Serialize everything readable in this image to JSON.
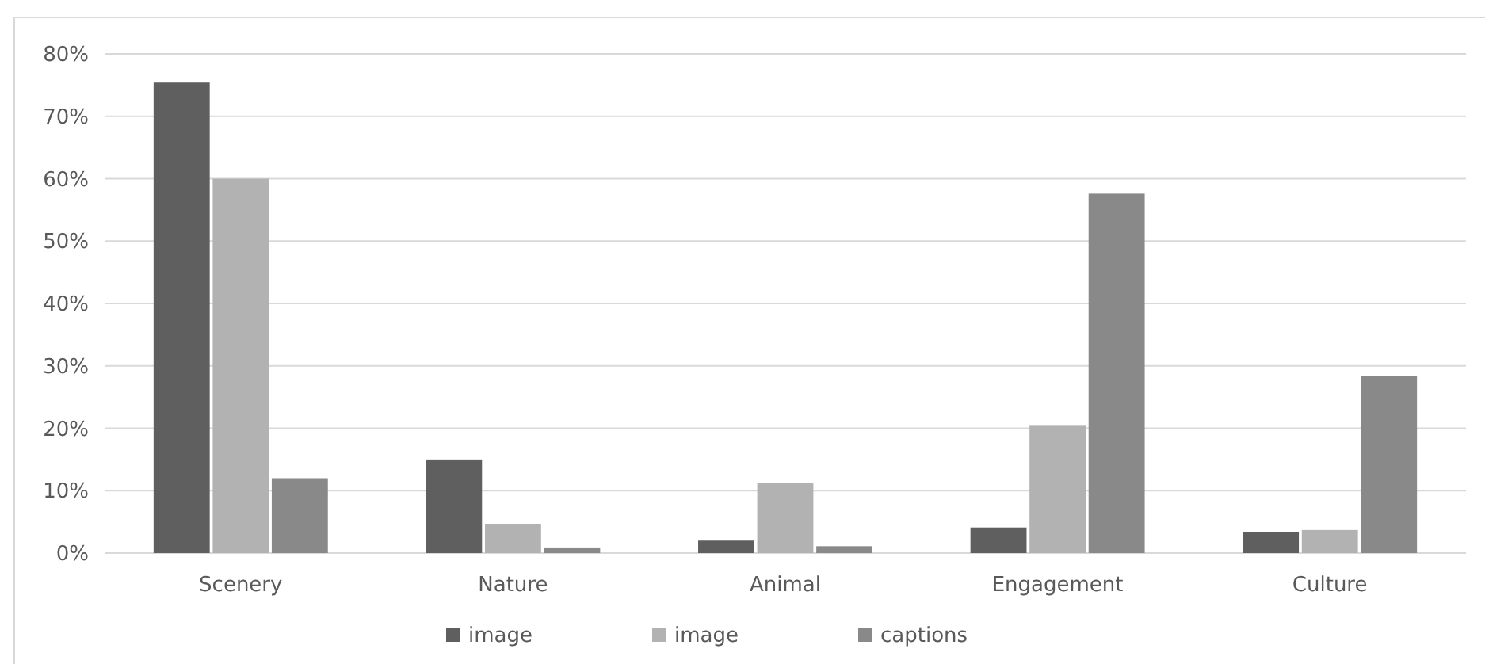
{
  "chart_data": {
    "type": "bar",
    "categories": [
      "Scenery",
      "Nature",
      "Animal",
      "Engagement",
      "Culture"
    ],
    "series": [
      {
        "name": "image",
        "color": "#5f5f5f",
        "values": [
          75.4,
          15,
          2,
          4.1,
          3.4
        ]
      },
      {
        "name": "image",
        "color": "#b2b2b2",
        "values": [
          60,
          4.7,
          11.3,
          20.4,
          3.7
        ]
      },
      {
        "name": "captions",
        "color": "#898989",
        "values": [
          12,
          0.9,
          1.1,
          57.6,
          28.4
        ]
      }
    ],
    "ylim": [
      0,
      80
    ],
    "yticks": [
      {
        "value": 0,
        "label": "0%"
      },
      {
        "value": 10,
        "label": "10%"
      },
      {
        "value": 20,
        "label": "20%"
      },
      {
        "value": 30,
        "label": "30%"
      },
      {
        "value": 40,
        "label": "40%"
      },
      {
        "value": 50,
        "label": "50%"
      },
      {
        "value": 60,
        "label": "60%"
      },
      {
        "value": 70,
        "label": "70%"
      },
      {
        "value": 80,
        "label": "80%"
      }
    ],
    "grid": "y",
    "legend": "bottom"
  }
}
